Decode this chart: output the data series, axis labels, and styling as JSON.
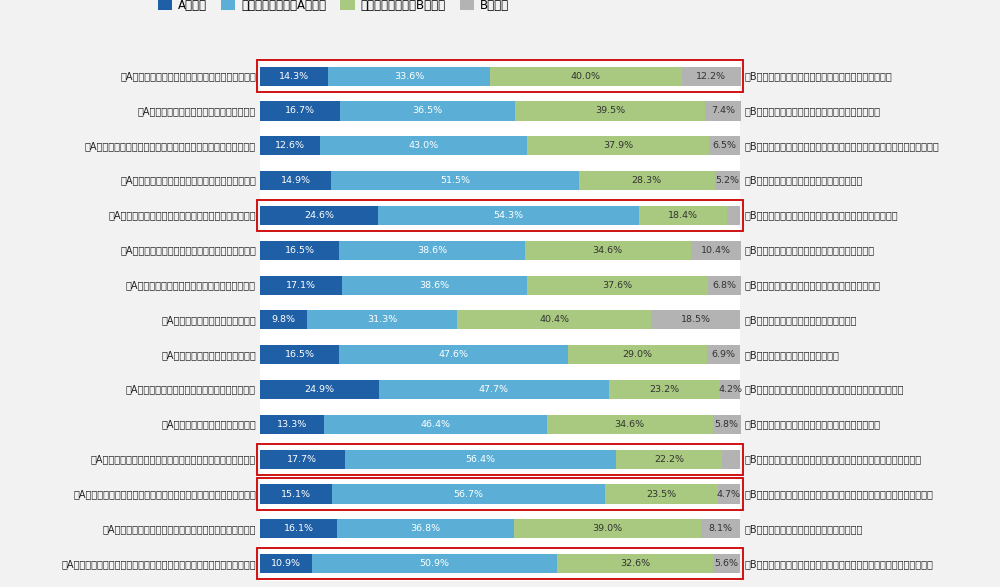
{
  "title_legend": [
    "Aに近い",
    "どちらかといえばAに近い",
    "どちらかといえばBに近い",
    "Bに近い"
  ],
  "colors": [
    "#1f5fa6",
    "#5bafd6",
    "#a8c97f",
    "#b3b3b3"
  ],
  "rows": [
    {
      "label_a": "【A】自ら先頭に立ってメンバーを率いたいほうだ",
      "label_b": "【B】後方からメンバーを支援し、活躍させたいほうだ",
      "values": [
        14.3,
        33.6,
        40.0,
        12.2
      ],
      "bordered": true
    },
    {
      "label_a": "【A】まず計画を立ててから行動するほうだ",
      "label_b": "【B】行動しながら計画を軌道修正していくほうだ",
      "values": [
        16.7,
        36.5,
        39.5,
        7.4
      ],
      "bordered": false
    },
    {
      "label_a": "【A】公式の権限や組織のルールに基づいて部下を動かすほうだ",
      "label_b": "【B】地位や権限に頼らず、自分個人の考えを示して部下を動かすほうだ",
      "values": [
        12.6,
        43.0,
        37.9,
        6.5
      ],
      "bordered": false
    },
    {
      "label_a": "【A】部下の心情に配慮したマネジメントが重要だ",
      "label_b": "【B】効果的・効率的な勤務の設計が重要だ",
      "values": [
        14.9,
        51.5,
        28.3,
        5.2
      ],
      "bordered": false
    },
    {
      "label_a": "【A】部下を育てる上では、強みを伸ばすことが重要だ",
      "label_b": "【B】部下を育てる上では、弱みを克服することが重要だ",
      "values": [
        24.6,
        54.3,
        18.4,
        2.7
      ],
      "bordered": true
    },
    {
      "label_a": "【A】与えられた仕事をきちんとこなしたいほうだ",
      "label_b": "【B】仕事内容や進め方は自分で決めたいほうだ",
      "values": [
        16.5,
        38.6,
        34.6,
        10.4
      ],
      "bordered": false
    },
    {
      "label_a": "【A】将来から逆算して仕事を組み立てるほうだ",
      "label_b": "【B】現状から積み上げて仕事を組み立てるほうだ",
      "values": [
        17.1,
        38.6,
        37.6,
        6.8
      ],
      "bordered": false
    },
    {
      "label_a": "【A】感情をオープンにするほうだ",
      "label_b": "【B】感情を抑えて冷静にふるまうほうだ",
      "values": [
        9.8,
        31.3,
        40.4,
        18.5
      ],
      "bordered": false
    },
    {
      "label_a": "【A】楽観的に物事を考えるほうだ",
      "label_b": "【B】悲観的に物事を考えるほうだ",
      "values": [
        16.5,
        47.6,
        29.0,
        6.9
      ],
      "bordered": false
    },
    {
      "label_a": "【A】全ての経験には意味があると考えるほうだ",
      "label_b": "【B】しなくても良い（ムダな）経験もあると考えるほうだ",
      "values": [
        24.9,
        47.7,
        23.2,
        4.2
      ],
      "bordered": false
    },
    {
      "label_a": "【A】仕事においては結果が重要だ",
      "label_b": "【B】仕事においては結果に至るプロセスが重要だ",
      "values": [
        13.3,
        46.4,
        34.6,
        5.8
      ],
      "bordered": false
    },
    {
      "label_a": "【A】人の能力や資質は、努力次第で必ず伸ばすことができる",
      "label_b": "【B】人の能力や資質は、生まれ持ったもので変えることは難しい",
      "values": [
        17.7,
        56.4,
        22.2,
        3.7
      ],
      "bordered": true
    },
    {
      "label_a": "【A】人は本来、仕事を楽しみ、責任を受け入れ自ら考え動く存在だ",
      "label_b": "【B】人は本来、仕事が嫌いで、強制・命令しなければ動かない存在だ",
      "values": [
        15.1,
        56.7,
        23.5,
        4.7
      ],
      "bordered": true
    },
    {
      "label_a": "【A】一人ひとりがプロとして自律していることが重要だ",
      "label_b": "【B】職場・チームとしての一体感が重要だ",
      "values": [
        16.1,
        36.8,
        39.0,
        8.1
      ],
      "bordered": false
    },
    {
      "label_a": "【A】個人の成果は、チーム全体の成果として連動して評価されるべきだ",
      "label_b": "【B】個人の成果は、チーム全体の成果とは区別して評価されるべきだ",
      "values": [
        10.9,
        50.9,
        32.6,
        5.6
      ],
      "bordered": true
    }
  ],
  "bg_color": "#f2f2f2",
  "plot_bg": "#ffffff",
  "border_color": "#cc0000",
  "text_color": "#222222",
  "bar_label_fontsize": 6.8,
  "axis_label_fontsize": 7.0,
  "legend_fontsize": 8.5
}
